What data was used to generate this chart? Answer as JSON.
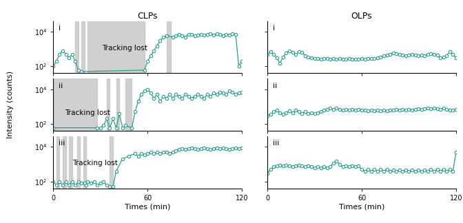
{
  "title_left": "CLPs",
  "title_right": "OLPs",
  "xlabel": "Times (min)",
  "ylabel": "Intensity (counts)",
  "line_color": "#2a9d8f",
  "shade_color": "#c8c8c8",
  "shade_alpha": 0.85,
  "xlim": [
    0,
    120
  ],
  "ylim_log": [
    40,
    40000
  ],
  "tracking_lost_label": "Tracking lost",
  "panel_labels": [
    "i",
    "ii",
    "iii"
  ],
  "clp_shade_regions": [
    [
      [
        14,
        16
      ],
      [
        18,
        20
      ],
      [
        22,
        58
      ],
      [
        72,
        75
      ]
    ],
    [
      [
        0,
        28
      ],
      [
        34,
        36
      ],
      [
        40,
        42
      ],
      [
        46,
        50
      ]
    ],
    [
      [
        2,
        4
      ],
      [
        6,
        8
      ],
      [
        10,
        12
      ],
      [
        15,
        17
      ],
      [
        19,
        21
      ],
      [
        36,
        38
      ]
    ]
  ],
  "clp_data": [
    {
      "x": [
        0,
        2,
        4,
        6,
        8,
        10,
        12,
        14,
        16,
        18,
        58,
        60,
        62,
        64,
        66,
        68,
        70,
        72,
        76,
        78,
        80,
        82,
        84,
        86,
        88,
        90,
        92,
        94,
        96,
        98,
        100,
        102,
        104,
        106,
        108,
        110,
        112,
        114,
        116,
        118,
        120
      ],
      "y": [
        100,
        200,
        500,
        800,
        500,
        300,
        500,
        200,
        60,
        50,
        60,
        200,
        400,
        800,
        1500,
        3000,
        5000,
        6000,
        5000,
        6000,
        7000,
        6000,
        5000,
        7000,
        7000,
        6000,
        6500,
        7000,
        6500,
        7000,
        7500,
        6500,
        7500,
        7000,
        6000,
        7000,
        6500,
        7500,
        7000,
        100,
        200
      ]
    },
    {
      "x": [
        0,
        28,
        30,
        32,
        34,
        36,
        38,
        40,
        42,
        44,
        46,
        50,
        52,
        54,
        56,
        58,
        60,
        62,
        64,
        66,
        68,
        70,
        72,
        74,
        76,
        78,
        80,
        82,
        84,
        86,
        88,
        90,
        92,
        94,
        96,
        98,
        100,
        102,
        104,
        106,
        108,
        110,
        112,
        114,
        116,
        118,
        120
      ],
      "y": [
        60,
        60,
        60,
        80,
        200,
        60,
        200,
        60,
        400,
        60,
        80,
        60,
        500,
        2000,
        5000,
        8000,
        10000,
        6000,
        3000,
        5000,
        2000,
        4000,
        3000,
        5000,
        3000,
        5000,
        4000,
        3000,
        5000,
        4000,
        3000,
        4000,
        5000,
        4000,
        3000,
        5000,
        4000,
        6000,
        5000,
        7000,
        6000,
        5000,
        8000,
        7000,
        5000,
        6000,
        7000
      ]
    },
    {
      "x": [
        0,
        2,
        4,
        6,
        8,
        10,
        12,
        14,
        16,
        18,
        20,
        21,
        22,
        24,
        26,
        28,
        30,
        32,
        34,
        36,
        38,
        40,
        44,
        48,
        52,
        54,
        56,
        58,
        60,
        62,
        64,
        66,
        68,
        70,
        72,
        74,
        76,
        78,
        80,
        82,
        84,
        86,
        88,
        90,
        92,
        94,
        96,
        98,
        100,
        102,
        104,
        106,
        108,
        110,
        112,
        114,
        116,
        118,
        120
      ],
      "y": [
        100,
        60,
        100,
        60,
        100,
        60,
        100,
        60,
        100,
        80,
        80,
        60,
        100,
        80,
        100,
        60,
        80,
        100,
        60,
        50,
        50,
        400,
        2000,
        3000,
        4000,
        3000,
        4000,
        3500,
        4000,
        5000,
        4000,
        5000,
        4000,
        5000,
        5000,
        4000,
        5000,
        6000,
        7000,
        8000,
        7000,
        8000,
        9000,
        8000,
        7000,
        8000,
        9000,
        8000,
        7000,
        8000,
        9000,
        8000,
        9000,
        8000,
        7000,
        8000,
        9000,
        8000,
        9000
      ]
    }
  ],
  "olp_data": [
    {
      "x": [
        0,
        2,
        4,
        6,
        8,
        10,
        12,
        14,
        16,
        18,
        20,
        22,
        24,
        26,
        28,
        30,
        32,
        34,
        36,
        38,
        40,
        42,
        44,
        46,
        48,
        50,
        52,
        54,
        56,
        58,
        60,
        62,
        64,
        66,
        68,
        70,
        72,
        74,
        76,
        78,
        80,
        82,
        84,
        86,
        88,
        90,
        92,
        94,
        96,
        98,
        100,
        102,
        104,
        106,
        108,
        110,
        112,
        114,
        116,
        118,
        120
      ],
      "y": [
        500,
        700,
        500,
        300,
        150,
        350,
        600,
        800,
        650,
        500,
        700,
        650,
        400,
        350,
        300,
        280,
        270,
        260,
        280,
        270,
        260,
        270,
        260,
        270,
        250,
        260,
        270,
        260,
        250,
        260,
        270,
        260,
        280,
        270,
        280,
        300,
        350,
        400,
        450,
        500,
        600,
        550,
        500,
        450,
        400,
        450,
        500,
        450,
        400,
        450,
        400,
        500,
        550,
        500,
        450,
        300,
        350,
        400,
        700,
        500,
        300
      ]
    },
    {
      "x": [
        0,
        2,
        4,
        6,
        8,
        10,
        12,
        14,
        16,
        18,
        20,
        22,
        24,
        26,
        28,
        30,
        32,
        34,
        36,
        38,
        40,
        42,
        44,
        46,
        48,
        50,
        52,
        54,
        56,
        58,
        60,
        62,
        64,
        66,
        68,
        70,
        72,
        74,
        76,
        78,
        80,
        82,
        84,
        86,
        88,
        90,
        92,
        94,
        96,
        98,
        100,
        102,
        104,
        106,
        108,
        110,
        112,
        114,
        116,
        118,
        120
      ],
      "y": [
        300,
        350,
        500,
        600,
        450,
        350,
        450,
        550,
        450,
        600,
        500,
        400,
        500,
        400,
        450,
        400,
        450,
        500,
        600,
        700,
        800,
        700,
        800,
        700,
        600,
        700,
        600,
        700,
        600,
        700,
        650,
        600,
        550,
        600,
        550,
        600,
        550,
        600,
        550,
        600,
        650,
        700,
        650,
        700,
        650,
        700,
        650,
        700,
        750,
        700,
        750,
        800,
        750,
        800,
        750,
        700,
        800,
        700,
        650,
        600,
        700
      ]
    },
    {
      "x": [
        0,
        2,
        4,
        6,
        8,
        10,
        12,
        14,
        16,
        18,
        20,
        22,
        24,
        26,
        28,
        30,
        32,
        34,
        36,
        38,
        40,
        42,
        44,
        46,
        48,
        50,
        52,
        54,
        56,
        58,
        60,
        62,
        64,
        66,
        68,
        70,
        72,
        74,
        76,
        78,
        80,
        82,
        84,
        86,
        88,
        90,
        92,
        94,
        96,
        98,
        100,
        102,
        104,
        106,
        108,
        110,
        112,
        114,
        116,
        118,
        120
      ],
      "y": [
        300,
        500,
        700,
        800,
        900,
        800,
        900,
        800,
        700,
        800,
        900,
        800,
        700,
        800,
        700,
        600,
        700,
        600,
        700,
        600,
        700,
        1200,
        1500,
        1000,
        700,
        800,
        700,
        800,
        700,
        800,
        500,
        400,
        500,
        400,
        500,
        400,
        500,
        400,
        500,
        400,
        450,
        400,
        450,
        400,
        450,
        400,
        450,
        400,
        450,
        400,
        450,
        400,
        500,
        400,
        500,
        400,
        500,
        400,
        500,
        400,
        5000
      ]
    }
  ]
}
